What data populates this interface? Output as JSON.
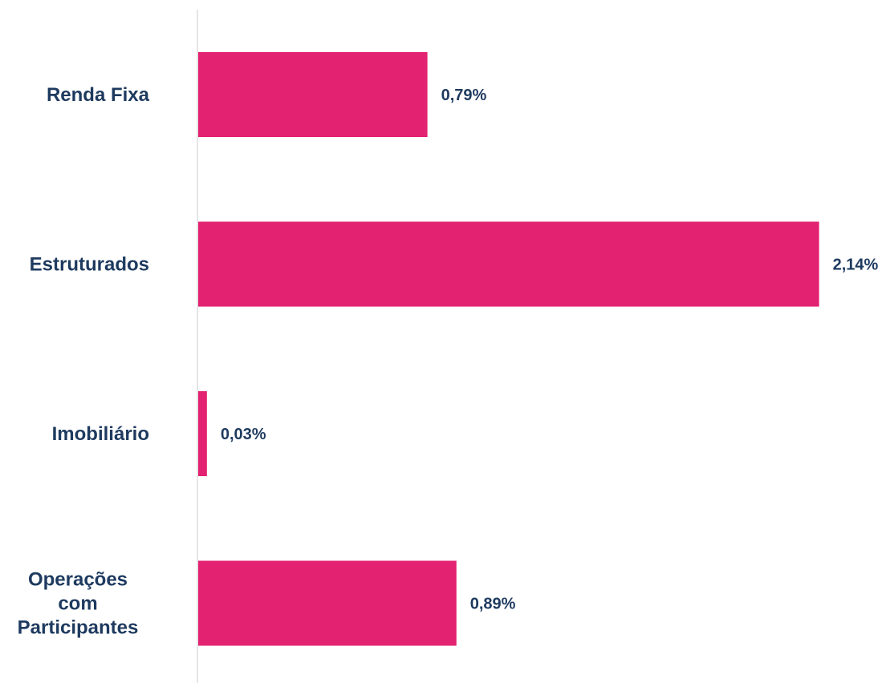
{
  "colors": {
    "bar": "#e32272",
    "text": "#1e3a5f",
    "axis": "#e5e5e5"
  },
  "chart_data": {
    "type": "bar",
    "orientation": "horizontal",
    "categories": [
      [
        "Renda Fixa"
      ],
      [
        "Estruturados"
      ],
      [
        "Imobiliário"
      ],
      [
        "Operações",
        "com",
        "Participantes"
      ]
    ],
    "values": [
      0.79,
      2.14,
      0.03,
      0.89
    ],
    "value_labels": [
      "0,79%",
      "2,14%",
      "0,03%",
      "0,89%"
    ],
    "unit": "%",
    "grid": false,
    "legend": "none"
  }
}
